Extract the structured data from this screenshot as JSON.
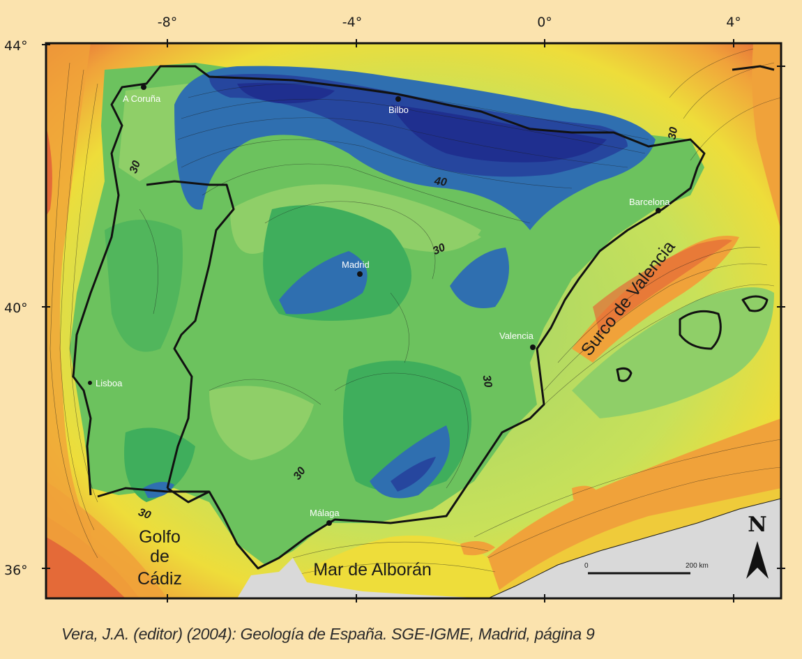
{
  "map": {
    "lon_ticks": [
      "-8°",
      "-4°",
      "0°",
      "4°"
    ],
    "lat_ticks": [
      "44°",
      "40°",
      "36°"
    ],
    "cities": [
      {
        "name": "A Coruña"
      },
      {
        "name": "Bilbo"
      },
      {
        "name": "Barcelona"
      },
      {
        "name": "Madrid"
      },
      {
        "name": "Valencia"
      },
      {
        "name": "Lisboa"
      },
      {
        "name": "Málaga"
      }
    ],
    "sea_labels": {
      "surco": "Surco de Valencia",
      "golfo_line1": "Golfo",
      "golfo_line2": "de",
      "golfo_line3": "Cádiz",
      "alboran": "Mar de Alborán"
    },
    "contour_labels": [
      "30",
      "40",
      "30",
      "30",
      "30",
      "30",
      "30"
    ],
    "north_label": "N",
    "scale": {
      "start": "0",
      "end": "200 km"
    },
    "colors": {
      "background": "#fbe3ae",
      "deep_blue": "#1f2f8f",
      "green": "#3fae5c",
      "light_green": "#8fcf68",
      "yellow": "#eedd3a",
      "orange": "#f0a23a",
      "red": "#e46a38",
      "africa_gray": "#d9d9d9"
    }
  },
  "caption": "Vera, J.A. (editor) (2004): Geología de España. SGE-IGME, Madrid, página 9"
}
